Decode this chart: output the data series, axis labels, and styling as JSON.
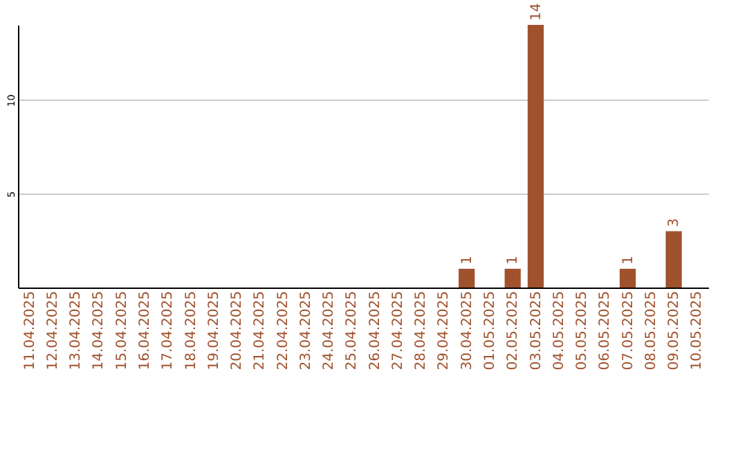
{
  "chart_data": {
    "type": "bar",
    "categories": [
      "11.04.2025",
      "12.04.2025",
      "13.04.2025",
      "14.04.2025",
      "15.04.2025",
      "16.04.2025",
      "17.04.2025",
      "18.04.2025",
      "19.04.2025",
      "20.04.2025",
      "21.04.2025",
      "22.04.2025",
      "23.04.2025",
      "24.04.2025",
      "25.04.2025",
      "26.04.2025",
      "27.04.2025",
      "28.04.2025",
      "29.04.2025",
      "30.04.2025",
      "01.05.2025",
      "02.05.2025",
      "03.05.2025",
      "04.05.2025",
      "05.05.2025",
      "06.05.2025",
      "07.05.2025",
      "08.05.2025",
      "09.05.2025",
      "10.05.2025"
    ],
    "values": [
      0,
      0,
      0,
      0,
      0,
      0,
      0,
      0,
      0,
      0,
      0,
      0,
      0,
      0,
      0,
      0,
      0,
      0,
      0,
      1,
      0,
      1,
      14,
      0,
      0,
      0,
      1,
      0,
      3,
      0
    ],
    "value_labels": [
      null,
      null,
      null,
      null,
      null,
      null,
      null,
      null,
      null,
      null,
      null,
      null,
      null,
      null,
      null,
      null,
      null,
      null,
      null,
      "1",
      null,
      "1",
      "14",
      null,
      null,
      null,
      "1",
      null,
      "3",
      null
    ],
    "color": "#a0522d",
    "ylim": [
      0,
      14
    ],
    "yticks": [
      5,
      10
    ],
    "grid": "y"
  }
}
